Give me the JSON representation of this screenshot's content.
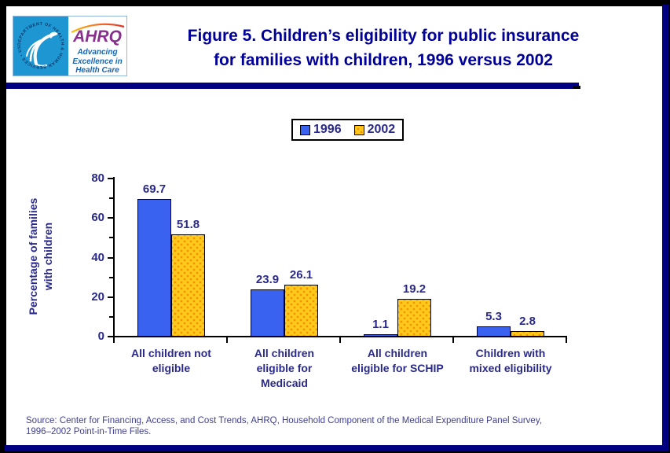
{
  "header": {
    "title_line1": "Figure 5. Children’s eligibility for public insurance",
    "title_line2": "for families with children, 1996 versus 2002",
    "title_color": "#000099",
    "logo": {
      "seal_text": "DEPARTMENT OF HEALTH & HUMAN SERVICES • USA",
      "ahrq_acronym": "AHRQ",
      "tagline": "Advancing\nExcellence in\nHealth Care"
    }
  },
  "chart_data": {
    "type": "bar",
    "title": "Figure 5. Children’s eligibility for public insurance for families with children, 1996 versus 2002",
    "categories": [
      "All children not\neligible",
      "All children\neligible for\nMedicaid",
      "All children\neligible for SCHIP",
      "Children with\nmixed eligibility"
    ],
    "series": [
      {
        "name": "1996",
        "color": "#3A62F0",
        "pattern": "solid",
        "values": [
          69.7,
          23.9,
          1.1,
          5.3
        ]
      },
      {
        "name": "2002",
        "color": "#FFC81A",
        "pattern": "dots",
        "values": [
          51.8,
          26.1,
          19.2,
          2.8
        ]
      }
    ],
    "ylabel": "Percentage of families\nwith children",
    "xlabel": "",
    "ylim": [
      0,
      80
    ],
    "yticks": [
      0,
      20,
      40,
      60,
      80
    ],
    "yticks_minor": [
      10,
      30,
      50,
      70
    ],
    "grid": false,
    "legend_position": "top-center",
    "data_labels": true,
    "axis_color": "#000000",
    "label_color": "#29298C"
  },
  "source": {
    "line1": "Source: Center for Financing, Access, and Cost Trends, AHRQ, Household Component of the Medical Expenditure Panel Survey,",
    "line2": "1996–2002 Point-in-Time Files."
  },
  "frame": {
    "border_navy": "#000080",
    "border_black": "#000000"
  }
}
